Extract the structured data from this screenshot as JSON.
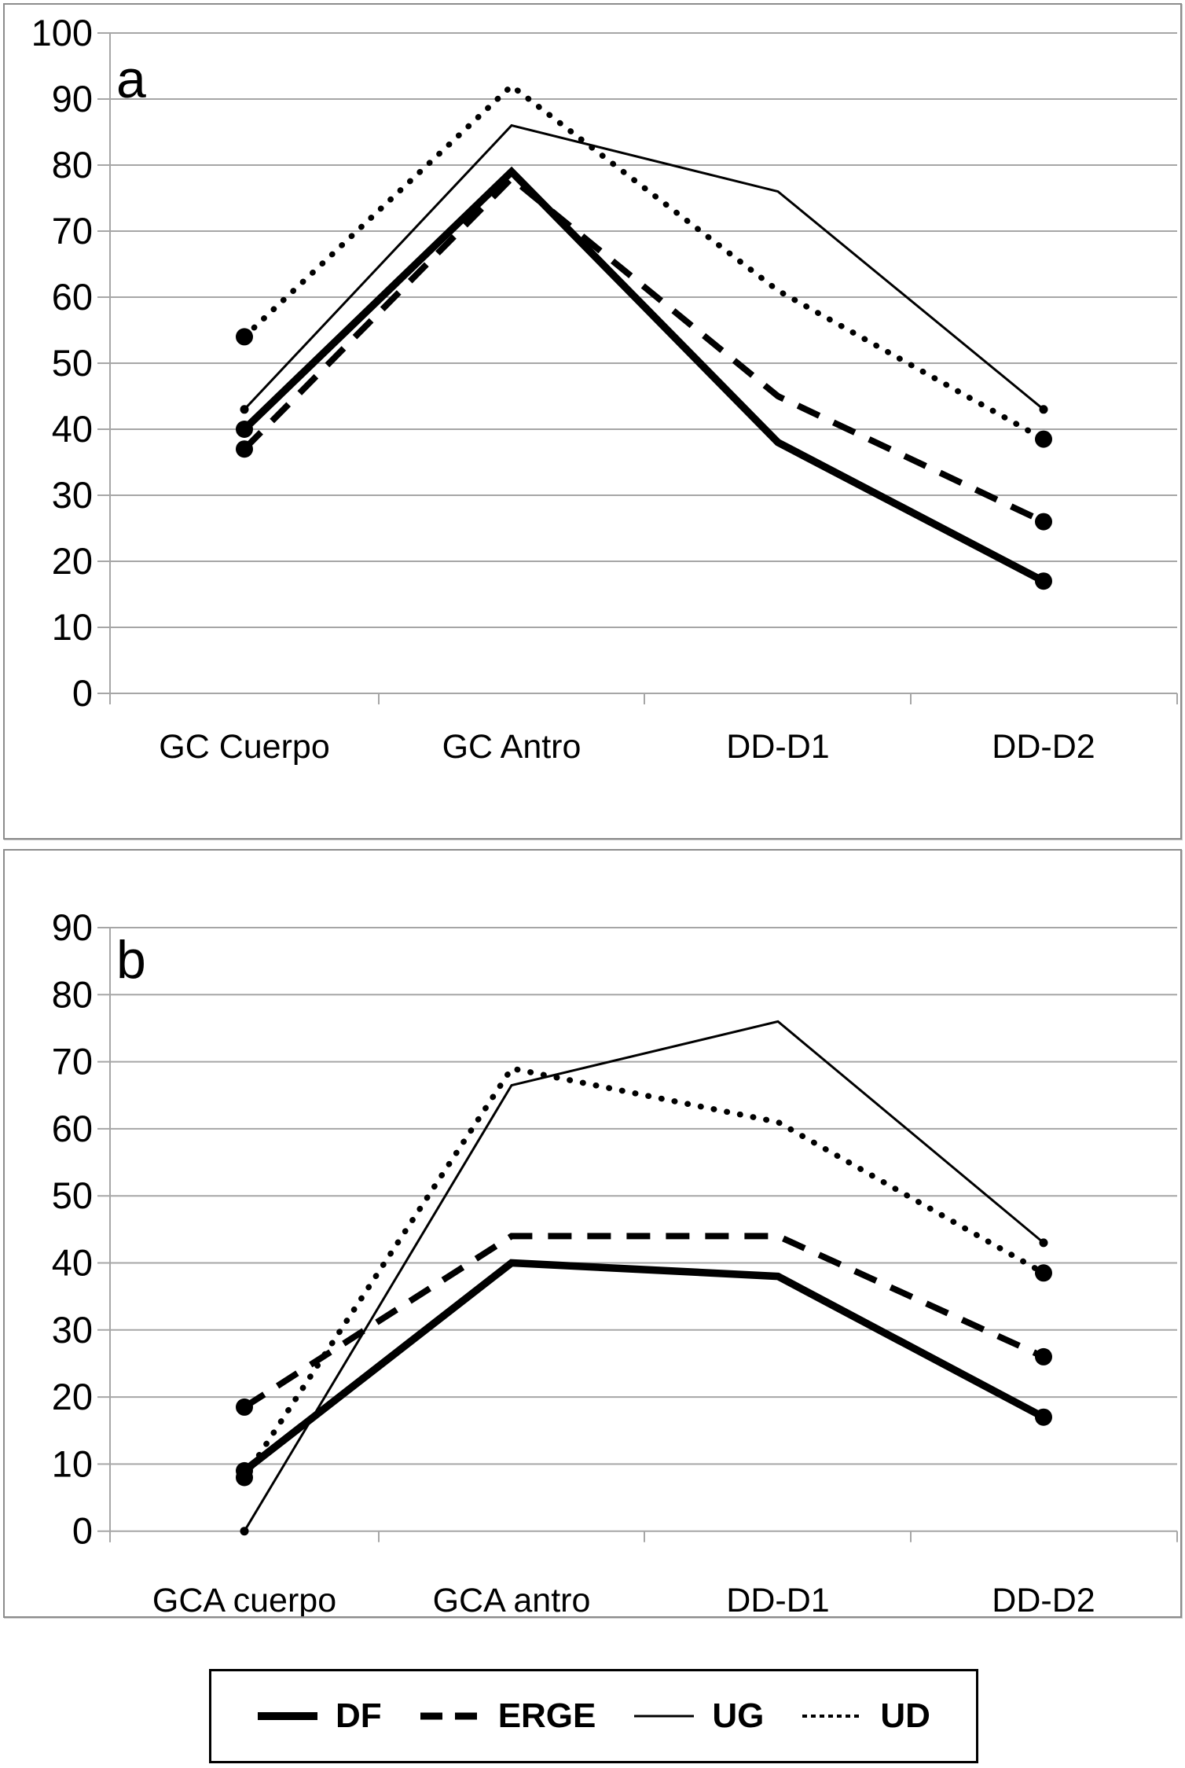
{
  "page": {
    "background": "#ffffff",
    "panel_border_color": "#8c8c8c",
    "grid_color": "#a6a6a6",
    "line_color": "#000000",
    "text_color": "#000000"
  },
  "legend": {
    "position": "bottom-outside",
    "items": [
      {
        "label": "DF",
        "style": "thick-solid",
        "swatch_icon": "thick-line-swatch"
      },
      {
        "label": "ERGE",
        "style": "dashed",
        "swatch_icon": "dashed-line-swatch"
      },
      {
        "label": "UG",
        "style": "thin-solid",
        "swatch_icon": "thin-line-swatch"
      },
      {
        "label": "UD",
        "style": "dotted",
        "swatch_icon": "dotted-line-swatch"
      }
    ]
  },
  "chart_data": [
    {
      "type": "line",
      "panel_label": "a",
      "title": "",
      "xlabel": "",
      "ylabel": "",
      "categories": [
        "GC Cuerpo",
        "GC Antro",
        "DD-D1",
        "DD-D2"
      ],
      "ylim": [
        0,
        100
      ],
      "ytick_step": 10,
      "grid": true,
      "legend_position": "bottom-outside",
      "series": [
        {
          "name": "DF",
          "style": "thick-solid",
          "values": [
            40,
            79,
            38,
            17
          ]
        },
        {
          "name": "ERGE",
          "style": "dashed",
          "values": [
            37,
            78,
            45,
            26
          ]
        },
        {
          "name": "UG",
          "style": "thin-solid",
          "values": [
            43,
            86,
            76,
            43
          ]
        },
        {
          "name": "UD",
          "style": "dotted",
          "values": [
            54,
            92,
            61,
            38.5
          ]
        }
      ]
    },
    {
      "type": "line",
      "panel_label": "b",
      "title": "",
      "xlabel": "",
      "ylabel": "",
      "categories": [
        "GCA cuerpo",
        "GCA antro",
        "DD-D1",
        "DD-D2"
      ],
      "ylim": [
        0,
        90
      ],
      "ytick_step": 10,
      "grid": true,
      "legend_position": "bottom-outside",
      "series": [
        {
          "name": "DF",
          "style": "thick-solid",
          "values": [
            9,
            40,
            38,
            17
          ]
        },
        {
          "name": "ERGE",
          "style": "dashed",
          "values": [
            18.5,
            44,
            44,
            26
          ]
        },
        {
          "name": "UG",
          "style": "thin-solid",
          "values": [
            0,
            66.5,
            76,
            43
          ]
        },
        {
          "name": "UD",
          "style": "dotted",
          "values": [
            8,
            69,
            61,
            38.5
          ]
        }
      ]
    }
  ]
}
